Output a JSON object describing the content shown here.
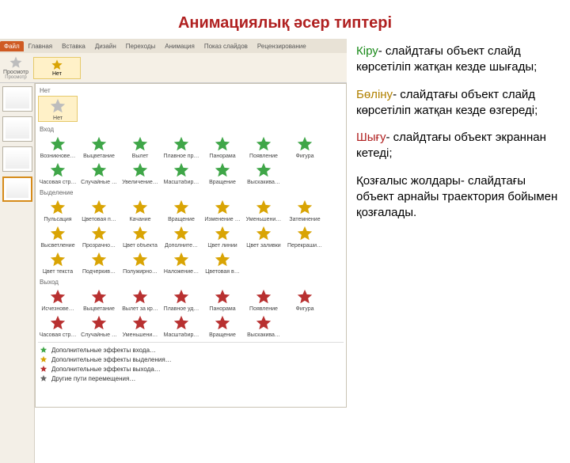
{
  "title": "Анимациялық әсер типтері",
  "ribbon": {
    "tabs": [
      "Файл",
      "Главная",
      "Вставка",
      "Дизайн",
      "Переходы",
      "Анимация",
      "Показ слайдов",
      "Рецензирование"
    ],
    "active_index": 0,
    "preview_label": "Просмотр",
    "preview_sub": "Просмотр",
    "none_label": "Нет",
    "selected_star": "Нет"
  },
  "thumbs": [
    {
      "n": "4"
    },
    {
      "n": "5"
    },
    {
      "n": "6"
    },
    {
      "n": "7",
      "sel": true
    }
  ],
  "colors": {
    "none": "#bdbdbd",
    "entry": "#3fa648",
    "emphasis": "#d9a404",
    "exit": "#b83030",
    "path": "#666"
  },
  "gallery": {
    "groups": [
      {
        "label": "Нет",
        "color": "none",
        "items": [
          "Нет"
        ]
      },
      {
        "label": "Вход",
        "color": "entry",
        "items": [
          "Возникнове…",
          "Выцветание",
          "Вылет",
          "Плавное пр…",
          "Панорама",
          "Появление",
          "Фигура",
          "Часовая стр…",
          "Случайные …",
          "Увеличение…",
          "Масштабир…",
          "Вращение",
          "Выскакива…"
        ]
      },
      {
        "label": "Выделение",
        "color": "emphasis",
        "items": [
          "Пульсация",
          "Цветовая п…",
          "Качание",
          "Вращение",
          "Изменение …",
          "Уменьшени…",
          "Затемнение",
          "Высветление",
          "Прозрачно…",
          "Цвет объекта",
          "Дополните…",
          "Цвет линии",
          "Цвет заливки",
          "Перекраши…",
          "Цвет текста",
          "Подчеркив…",
          "Полужирно…",
          "Наложение…",
          "Цветовая в…"
        ]
      },
      {
        "label": "Выход",
        "color": "exit",
        "items": [
          "Исчезнове…",
          "Выцветание",
          "Вылет за кр…",
          "Плавное уд…",
          "Панорама",
          "Появление",
          "Фигура",
          "Часовая стр…",
          "Случайные …",
          "Уменьшени…",
          "Масштабир…",
          "Вращение",
          "Выскакива…"
        ]
      }
    ],
    "footer": [
      {
        "c": "entry",
        "t": "Дополнительные эффекты входа…"
      },
      {
        "c": "emphasis",
        "t": "Дополнительные эффекты выделения…"
      },
      {
        "c": "exit",
        "t": "Дополнительные эффекты выхода…"
      },
      {
        "c": "path",
        "t": "Другие пути перемещения…"
      }
    ]
  },
  "desc": [
    {
      "hl": "g",
      "lead": "Кіру",
      "rest": "- слайдтағы объект слайд көрсетіліп жатқан кезде шығады;"
    },
    {
      "hl": "y",
      "lead": "Бөліну",
      "rest": "- слайдтағы объект слайд көрсетіліп жатқан кезде өзгереді;"
    },
    {
      "hl": "r",
      "lead": "Шығу",
      "rest": "- слайдтағы объект экраннан кетеді;"
    },
    {
      "hl": "",
      "lead": "Қозғалыс жолдары",
      "rest": "- слайдтағы объект арнайы траектория бойымен қозғалады."
    }
  ]
}
